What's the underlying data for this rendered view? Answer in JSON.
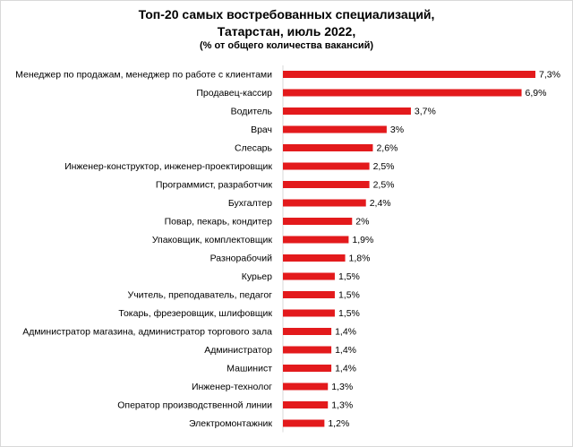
{
  "chart_data": {
    "type": "bar",
    "orientation": "horizontal",
    "title": "Топ-20 самых востребованных специализаций,",
    "subtitle": "Татарстан,  июль 2022,",
    "note": "(% от общего количества вакансий)",
    "categories": [
      "Менеджер по продажам, менеджер по работе с клиентами",
      "Продавец-кассир",
      "Водитель",
      "Врач",
      "Слесарь",
      "Инженер-конструктор, инженер-проектировщик",
      "Программист, разработчик",
      "Бухгалтер",
      "Повар, пекарь, кондитер",
      "Упаковщик, комплектовщик",
      "Разнорабочий",
      "Курьер",
      "Учитель, преподаватель, педагог",
      "Токарь, фрезеровщик, шлифовщик",
      "Администратор магазина, администратор торгового зала",
      "Администратор",
      "Машинист",
      "Инженер-технолог",
      "Оператор производственной линии",
      "Электромонтажник"
    ],
    "values": [
      7.3,
      6.9,
      3.7,
      3,
      2.6,
      2.5,
      2.5,
      2.4,
      2,
      1.9,
      1.8,
      1.5,
      1.5,
      1.5,
      1.4,
      1.4,
      1.4,
      1.3,
      1.3,
      1.2
    ],
    "data_labels": [
      "7,3%",
      "6,9%",
      "3,7%",
      "3%",
      "2,6%",
      "2,5%",
      "2,5%",
      "2,4%",
      "2%",
      "1,9%",
      "1,8%",
      "1,5%",
      "1,5%",
      "1,5%",
      "1,4%",
      "1,4%",
      "1,4%",
      "1,3%",
      "1,3%",
      "1,2%"
    ],
    "xlim": [
      0,
      7.3
    ],
    "grid": false,
    "bar_color": "#e31a1c",
    "axis_color": "#d9d9d9"
  }
}
